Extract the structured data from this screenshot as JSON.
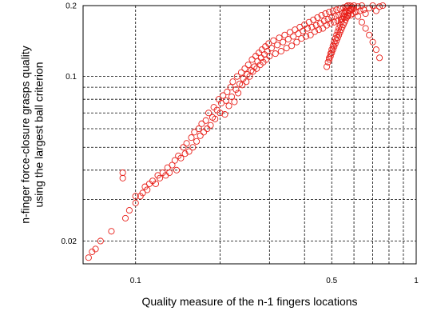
{
  "chart_data": {
    "type": "scatter",
    "xlabel": "Quality measure of the n-1 fingers locations",
    "ylabel": "n-finger force-closure grasps quality\nusing the largest ball criterion",
    "x_scale": "log",
    "y_scale": "log",
    "xlim": [
      0.065,
      1.0
    ],
    "ylim": [
      0.016,
      0.2
    ],
    "x_ticks": [
      {
        "value": 0.1,
        "label": "0.1"
      },
      {
        "value": 0.5,
        "label": "0.5"
      },
      {
        "value": 1.0,
        "label": "1"
      }
    ],
    "y_ticks": [
      {
        "value": 0.02,
        "label": "0.02"
      },
      {
        "value": 0.1,
        "label": "0.1"
      },
      {
        "value": 0.2,
        "label": "0.2"
      }
    ],
    "x_grid": [
      0.1,
      0.2,
      0.3,
      0.4,
      0.5,
      0.6,
      0.7,
      0.8,
      0.9,
      1.0
    ],
    "y_grid": [
      0.02,
      0.03,
      0.04,
      0.05,
      0.06,
      0.07,
      0.08,
      0.09,
      0.1,
      0.2
    ],
    "grid": true,
    "marker_color": "#e8201a",
    "points": [
      [
        0.068,
        0.017
      ],
      [
        0.07,
        0.018
      ],
      [
        0.072,
        0.0185
      ],
      [
        0.075,
        0.02
      ],
      [
        0.082,
        0.022
      ],
      [
        0.09,
        0.037
      ],
      [
        0.09,
        0.039
      ],
      [
        0.092,
        0.025
      ],
      [
        0.095,
        0.027
      ],
      [
        0.1,
        0.029
      ],
      [
        0.1,
        0.031
      ],
      [
        0.104,
        0.031
      ],
      [
        0.106,
        0.032
      ],
      [
        0.108,
        0.034
      ],
      [
        0.11,
        0.033
      ],
      [
        0.112,
        0.035
      ],
      [
        0.115,
        0.036
      ],
      [
        0.118,
        0.035
      ],
      [
        0.12,
        0.038
      ],
      [
        0.122,
        0.037
      ],
      [
        0.125,
        0.039
      ],
      [
        0.128,
        0.038
      ],
      [
        0.13,
        0.041
      ],
      [
        0.132,
        0.039
      ],
      [
        0.135,
        0.042
      ],
      [
        0.138,
        0.044
      ],
      [
        0.14,
        0.04
      ],
      [
        0.142,
        0.046
      ],
      [
        0.145,
        0.045
      ],
      [
        0.148,
        0.05
      ],
      [
        0.15,
        0.047
      ],
      [
        0.152,
        0.052
      ],
      [
        0.155,
        0.048
      ],
      [
        0.158,
        0.055
      ],
      [
        0.16,
        0.05
      ],
      [
        0.162,
        0.058
      ],
      [
        0.165,
        0.053
      ],
      [
        0.168,
        0.06
      ],
      [
        0.17,
        0.056
      ],
      [
        0.172,
        0.063
      ],
      [
        0.175,
        0.058
      ],
      [
        0.178,
        0.065
      ],
      [
        0.18,
        0.06
      ],
      [
        0.182,
        0.07
      ],
      [
        0.185,
        0.062
      ],
      [
        0.188,
        0.067
      ],
      [
        0.19,
        0.074
      ],
      [
        0.192,
        0.066
      ],
      [
        0.195,
        0.072
      ],
      [
        0.198,
        0.08
      ],
      [
        0.2,
        0.07
      ],
      [
        0.202,
        0.077
      ],
      [
        0.205,
        0.083
      ],
      [
        0.208,
        0.069
      ],
      [
        0.21,
        0.079
      ],
      [
        0.212,
        0.086
      ],
      [
        0.215,
        0.075
      ],
      [
        0.218,
        0.09
      ],
      [
        0.22,
        0.082
      ],
      [
        0.222,
        0.095
      ],
      [
        0.225,
        0.078
      ],
      [
        0.228,
        0.088
      ],
      [
        0.23,
        0.1
      ],
      [
        0.232,
        0.085
      ],
      [
        0.235,
        0.093
      ],
      [
        0.238,
        0.104
      ],
      [
        0.24,
        0.092
      ],
      [
        0.242,
        0.098
      ],
      [
        0.245,
        0.108
      ],
      [
        0.248,
        0.095
      ],
      [
        0.25,
        0.102
      ],
      [
        0.252,
        0.112
      ],
      [
        0.255,
        0.1
      ],
      [
        0.258,
        0.106
      ],
      [
        0.26,
        0.118
      ],
      [
        0.262,
        0.105
      ],
      [
        0.265,
        0.11
      ],
      [
        0.268,
        0.122
      ],
      [
        0.27,
        0.108
      ],
      [
        0.272,
        0.116
      ],
      [
        0.275,
        0.126
      ],
      [
        0.278,
        0.112
      ],
      [
        0.28,
        0.12
      ],
      [
        0.282,
        0.13
      ],
      [
        0.285,
        0.115
      ],
      [
        0.288,
        0.124
      ],
      [
        0.29,
        0.134
      ],
      [
        0.292,
        0.118
      ],
      [
        0.295,
        0.128
      ],
      [
        0.298,
        0.138
      ],
      [
        0.3,
        0.122
      ],
      [
        0.305,
        0.132
      ],
      [
        0.31,
        0.142
      ],
      [
        0.315,
        0.125
      ],
      [
        0.32,
        0.136
      ],
      [
        0.325,
        0.146
      ],
      [
        0.33,
        0.128
      ],
      [
        0.335,
        0.14
      ],
      [
        0.34,
        0.15
      ],
      [
        0.345,
        0.132
      ],
      [
        0.35,
        0.144
      ],
      [
        0.355,
        0.154
      ],
      [
        0.36,
        0.135
      ],
      [
        0.365,
        0.148
      ],
      [
        0.37,
        0.158
      ],
      [
        0.375,
        0.14
      ],
      [
        0.38,
        0.152
      ],
      [
        0.385,
        0.162
      ],
      [
        0.39,
        0.145
      ],
      [
        0.395,
        0.156
      ],
      [
        0.4,
        0.166
      ],
      [
        0.405,
        0.148
      ],
      [
        0.41,
        0.16
      ],
      [
        0.415,
        0.17
      ],
      [
        0.42,
        0.15
      ],
      [
        0.425,
        0.162
      ],
      [
        0.43,
        0.174
      ],
      [
        0.435,
        0.155
      ],
      [
        0.44,
        0.165
      ],
      [
        0.445,
        0.178
      ],
      [
        0.45,
        0.158
      ],
      [
        0.455,
        0.168
      ],
      [
        0.46,
        0.182
      ],
      [
        0.465,
        0.16
      ],
      [
        0.47,
        0.172
      ],
      [
        0.475,
        0.185
      ],
      [
        0.48,
        0.165
      ],
      [
        0.485,
        0.175
      ],
      [
        0.49,
        0.188
      ],
      [
        0.495,
        0.168
      ],
      [
        0.5,
        0.178
      ],
      [
        0.505,
        0.19
      ],
      [
        0.51,
        0.17
      ],
      [
        0.515,
        0.18
      ],
      [
        0.52,
        0.192
      ],
      [
        0.525,
        0.172
      ],
      [
        0.53,
        0.182
      ],
      [
        0.535,
        0.194
      ],
      [
        0.54,
        0.175
      ],
      [
        0.545,
        0.185
      ],
      [
        0.55,
        0.196
      ],
      [
        0.555,
        0.178
      ],
      [
        0.56,
        0.188
      ],
      [
        0.565,
        0.198
      ],
      [
        0.57,
        0.18
      ],
      [
        0.575,
        0.19
      ],
      [
        0.58,
        0.2
      ],
      [
        0.585,
        0.182
      ],
      [
        0.59,
        0.192
      ],
      [
        0.595,
        0.185
      ],
      [
        0.6,
        0.195
      ],
      [
        0.61,
        0.188
      ],
      [
        0.62,
        0.198
      ],
      [
        0.63,
        0.19
      ],
      [
        0.64,
        0.2
      ],
      [
        0.65,
        0.192
      ],
      [
        0.66,
        0.185
      ],
      [
        0.68,
        0.195
      ],
      [
        0.7,
        0.2
      ],
      [
        0.72,
        0.19
      ],
      [
        0.74,
        0.198
      ],
      [
        0.76,
        0.2
      ],
      [
        0.49,
        0.12
      ],
      [
        0.495,
        0.125
      ],
      [
        0.5,
        0.13
      ],
      [
        0.505,
        0.135
      ],
      [
        0.51,
        0.14
      ],
      [
        0.515,
        0.145
      ],
      [
        0.52,
        0.15
      ],
      [
        0.525,
        0.155
      ],
      [
        0.53,
        0.16
      ],
      [
        0.535,
        0.165
      ],
      [
        0.54,
        0.17
      ],
      [
        0.545,
        0.175
      ],
      [
        0.55,
        0.18
      ],
      [
        0.555,
        0.185
      ],
      [
        0.56,
        0.19
      ],
      [
        0.565,
        0.195
      ],
      [
        0.57,
        0.2
      ],
      [
        0.48,
        0.11
      ],
      [
        0.485,
        0.115
      ],
      [
        0.49,
        0.118
      ],
      [
        0.495,
        0.122
      ],
      [
        0.5,
        0.126
      ],
      [
        0.505,
        0.13
      ],
      [
        0.51,
        0.134
      ],
      [
        0.515,
        0.138
      ],
      [
        0.52,
        0.142
      ],
      [
        0.525,
        0.146
      ],
      [
        0.53,
        0.15
      ],
      [
        0.535,
        0.154
      ],
      [
        0.54,
        0.158
      ],
      [
        0.545,
        0.162
      ],
      [
        0.55,
        0.166
      ],
      [
        0.555,
        0.17
      ],
      [
        0.56,
        0.174
      ],
      [
        0.565,
        0.178
      ],
      [
        0.57,
        0.182
      ],
      [
        0.575,
        0.186
      ],
      [
        0.58,
        0.19
      ],
      [
        0.585,
        0.194
      ],
      [
        0.59,
        0.198
      ],
      [
        0.6,
        0.2
      ],
      [
        0.62,
        0.18
      ],
      [
        0.64,
        0.17
      ],
      [
        0.66,
        0.16
      ],
      [
        0.68,
        0.15
      ],
      [
        0.7,
        0.14
      ],
      [
        0.72,
        0.13
      ],
      [
        0.74,
        0.12
      ]
    ]
  }
}
